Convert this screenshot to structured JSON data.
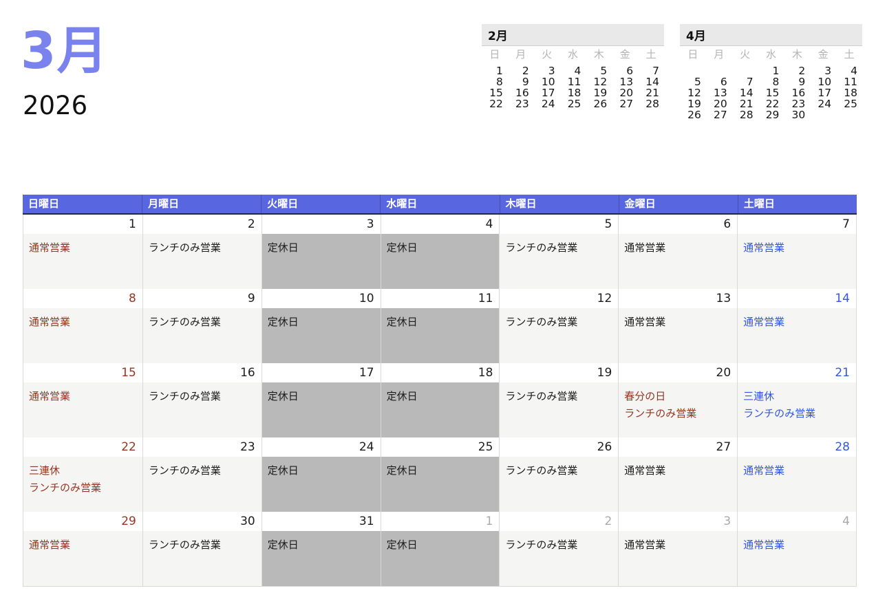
{
  "header": {
    "month_title": "3月",
    "year": "2026"
  },
  "colors": {
    "title_accent": "#7a82ed",
    "weekday_header_bg": "#5866e0",
    "weekday_header_border": "#232559",
    "weekday_header_text": "#ffffff",
    "sunday_text": "#963522",
    "saturday_text": "#3355e6",
    "muted_next_month_text": "#a9a9a9",
    "closed_day_bg": "#b9b9b9",
    "open_day_bg": "#f5f5f3",
    "mini_header_bg": "#e9e9e9",
    "mini_weekday_text": "#b4b4b4"
  },
  "mini_calendars": [
    {
      "title": "2月",
      "weekdays": [
        "日",
        "月",
        "火",
        "水",
        "木",
        "金",
        "土"
      ],
      "weeks": [
        [
          "1",
          "2",
          "3",
          "4",
          "5",
          "6",
          "7"
        ],
        [
          "8",
          "9",
          "10",
          "11",
          "12",
          "13",
          "14"
        ],
        [
          "15",
          "16",
          "17",
          "18",
          "19",
          "20",
          "21"
        ],
        [
          "22",
          "23",
          "24",
          "25",
          "26",
          "27",
          "28"
        ]
      ]
    },
    {
      "title": "4月",
      "weekdays": [
        "日",
        "月",
        "火",
        "水",
        "木",
        "金",
        "土"
      ],
      "weeks": [
        [
          "",
          "",
          "",
          "1",
          "2",
          "3",
          "4"
        ],
        [
          "5",
          "6",
          "7",
          "8",
          "9",
          "10",
          "11"
        ],
        [
          "12",
          "13",
          "14",
          "15",
          "16",
          "17",
          "18"
        ],
        [
          "19",
          "20",
          "21",
          "22",
          "23",
          "24",
          "25"
        ],
        [
          "26",
          "27",
          "28",
          "29",
          "30",
          "",
          ""
        ]
      ]
    }
  ],
  "main_calendar": {
    "weekday_headers": [
      "日曜日",
      "月曜日",
      "火曜日",
      "水曜日",
      "木曜日",
      "金曜日",
      "土曜日"
    ],
    "weeks": [
      {
        "days": [
          {
            "date": "1",
            "date_style": "default",
            "cell": "open",
            "notes": [
              {
                "text": "通常営業",
                "style": "sunday"
              }
            ]
          },
          {
            "date": "2",
            "date_style": "default",
            "cell": "open",
            "notes": [
              {
                "text": "ランチのみ営業",
                "style": "default"
              }
            ]
          },
          {
            "date": "3",
            "date_style": "default",
            "cell": "closed",
            "notes": [
              {
                "text": "定休日",
                "style": "default"
              }
            ]
          },
          {
            "date": "4",
            "date_style": "default",
            "cell": "closed",
            "notes": [
              {
                "text": "定休日",
                "style": "default"
              }
            ]
          },
          {
            "date": "5",
            "date_style": "default",
            "cell": "open",
            "notes": [
              {
                "text": "ランチのみ営業",
                "style": "default"
              }
            ]
          },
          {
            "date": "6",
            "date_style": "default",
            "cell": "open",
            "notes": [
              {
                "text": "通常営業",
                "style": "default"
              }
            ]
          },
          {
            "date": "7",
            "date_style": "default",
            "cell": "open",
            "notes": [
              {
                "text": "通常営業",
                "style": "saturday"
              }
            ]
          }
        ]
      },
      {
        "days": [
          {
            "date": "8",
            "date_style": "sunday",
            "cell": "open",
            "notes": [
              {
                "text": "通常営業",
                "style": "sunday"
              }
            ]
          },
          {
            "date": "9",
            "date_style": "default",
            "cell": "open",
            "notes": [
              {
                "text": "ランチのみ営業",
                "style": "default"
              }
            ]
          },
          {
            "date": "10",
            "date_style": "default",
            "cell": "closed",
            "notes": [
              {
                "text": "定休日",
                "style": "default"
              }
            ]
          },
          {
            "date": "11",
            "date_style": "default",
            "cell": "closed",
            "notes": [
              {
                "text": "定休日",
                "style": "default"
              }
            ]
          },
          {
            "date": "12",
            "date_style": "default",
            "cell": "open",
            "notes": [
              {
                "text": "ランチのみ営業",
                "style": "default"
              }
            ]
          },
          {
            "date": "13",
            "date_style": "default",
            "cell": "open",
            "notes": [
              {
                "text": "通常営業",
                "style": "default"
              }
            ]
          },
          {
            "date": "14",
            "date_style": "saturday",
            "cell": "open",
            "notes": [
              {
                "text": "通常営業",
                "style": "saturday"
              }
            ]
          }
        ]
      },
      {
        "days": [
          {
            "date": "15",
            "date_style": "sunday",
            "cell": "open",
            "notes": [
              {
                "text": "通常営業",
                "style": "sunday"
              }
            ]
          },
          {
            "date": "16",
            "date_style": "default",
            "cell": "open",
            "notes": [
              {
                "text": "ランチのみ営業",
                "style": "default"
              }
            ]
          },
          {
            "date": "17",
            "date_style": "default",
            "cell": "closed",
            "notes": [
              {
                "text": "定休日",
                "style": "default"
              }
            ]
          },
          {
            "date": "18",
            "date_style": "default",
            "cell": "closed",
            "notes": [
              {
                "text": "定休日",
                "style": "default"
              }
            ]
          },
          {
            "date": "19",
            "date_style": "default",
            "cell": "open",
            "notes": [
              {
                "text": "ランチのみ営業",
                "style": "default"
              }
            ]
          },
          {
            "date": "20",
            "date_style": "default",
            "cell": "open",
            "notes": [
              {
                "text": "春分の日",
                "style": "sunday"
              },
              {
                "text": "ランチのみ営業",
                "style": "sunday"
              }
            ]
          },
          {
            "date": "21",
            "date_style": "saturday",
            "cell": "open",
            "notes": [
              {
                "text": "三連休",
                "style": "saturday"
              },
              {
                "text": "ランチのみ営業",
                "style": "saturday"
              }
            ]
          }
        ]
      },
      {
        "days": [
          {
            "date": "22",
            "date_style": "sunday",
            "cell": "open",
            "notes": [
              {
                "text": "三連休",
                "style": "sunday"
              },
              {
                "text": "ランチのみ営業",
                "style": "sunday"
              }
            ]
          },
          {
            "date": "23",
            "date_style": "default",
            "cell": "open",
            "notes": [
              {
                "text": "ランチのみ営業",
                "style": "default"
              }
            ]
          },
          {
            "date": "24",
            "date_style": "default",
            "cell": "closed",
            "notes": [
              {
                "text": "定休日",
                "style": "default"
              }
            ]
          },
          {
            "date": "25",
            "date_style": "default",
            "cell": "closed",
            "notes": [
              {
                "text": "定休日",
                "style": "default"
              }
            ]
          },
          {
            "date": "26",
            "date_style": "default",
            "cell": "open",
            "notes": [
              {
                "text": "ランチのみ営業",
                "style": "default"
              }
            ]
          },
          {
            "date": "27",
            "date_style": "default",
            "cell": "open",
            "notes": [
              {
                "text": "通常営業",
                "style": "default"
              }
            ]
          },
          {
            "date": "28",
            "date_style": "saturday",
            "cell": "open",
            "notes": [
              {
                "text": "通常営業",
                "style": "saturday"
              }
            ]
          }
        ]
      },
      {
        "days": [
          {
            "date": "29",
            "date_style": "sunday",
            "cell": "open",
            "notes": [
              {
                "text": "通常営業",
                "style": "sunday"
              }
            ]
          },
          {
            "date": "30",
            "date_style": "default",
            "cell": "open",
            "notes": [
              {
                "text": "ランチのみ営業",
                "style": "default"
              }
            ]
          },
          {
            "date": "31",
            "date_style": "default",
            "cell": "closed",
            "notes": [
              {
                "text": "定休日",
                "style": "default"
              }
            ]
          },
          {
            "date": "1",
            "date_style": "muted",
            "cell": "closed",
            "notes": [
              {
                "text": "定休日",
                "style": "default"
              }
            ]
          },
          {
            "date": "2",
            "date_style": "muted",
            "cell": "open",
            "notes": [
              {
                "text": "ランチのみ営業",
                "style": "default"
              }
            ]
          },
          {
            "date": "3",
            "date_style": "muted",
            "cell": "open",
            "notes": [
              {
                "text": "通常営業",
                "style": "default"
              }
            ]
          },
          {
            "date": "4",
            "date_style": "muted",
            "cell": "open",
            "notes": [
              {
                "text": "通常営業",
                "style": "saturday"
              }
            ]
          }
        ]
      }
    ]
  }
}
